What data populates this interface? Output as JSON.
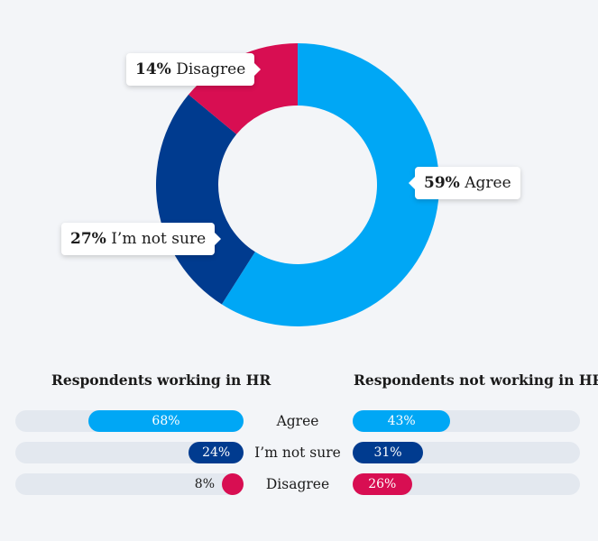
{
  "chart_data": [
    {
      "type": "pie",
      "variant": "donut",
      "slices": [
        {
          "label": "Agree",
          "value": 59,
          "pct_text": "59%",
          "color": "#00a7f5"
        },
        {
          "label": "I’m not sure",
          "value": 27,
          "pct_text": "27%",
          "color": "#003b8f"
        },
        {
          "label": "Disagree",
          "value": 14,
          "pct_text": "14%",
          "color": "#d80e52"
        }
      ]
    },
    {
      "type": "bar",
      "orientation": "horizontal",
      "categories": [
        "Agree",
        "I’m not sure",
        "Disagree"
      ],
      "series": [
        {
          "name": "Respondents working in HR",
          "values": [
            68,
            24,
            8
          ],
          "labels": [
            "68%",
            "24%",
            "8%"
          ]
        },
        {
          "name": "Respondents not working in HR",
          "values": [
            43,
            31,
            26
          ],
          "labels": [
            "43%",
            "31%",
            "26%"
          ]
        }
      ],
      "colors": [
        "#00a7f5",
        "#003b8f",
        "#d80e52"
      ],
      "track_color": "#e3e8ef",
      "xlim": [
        0,
        100
      ]
    }
  ]
}
